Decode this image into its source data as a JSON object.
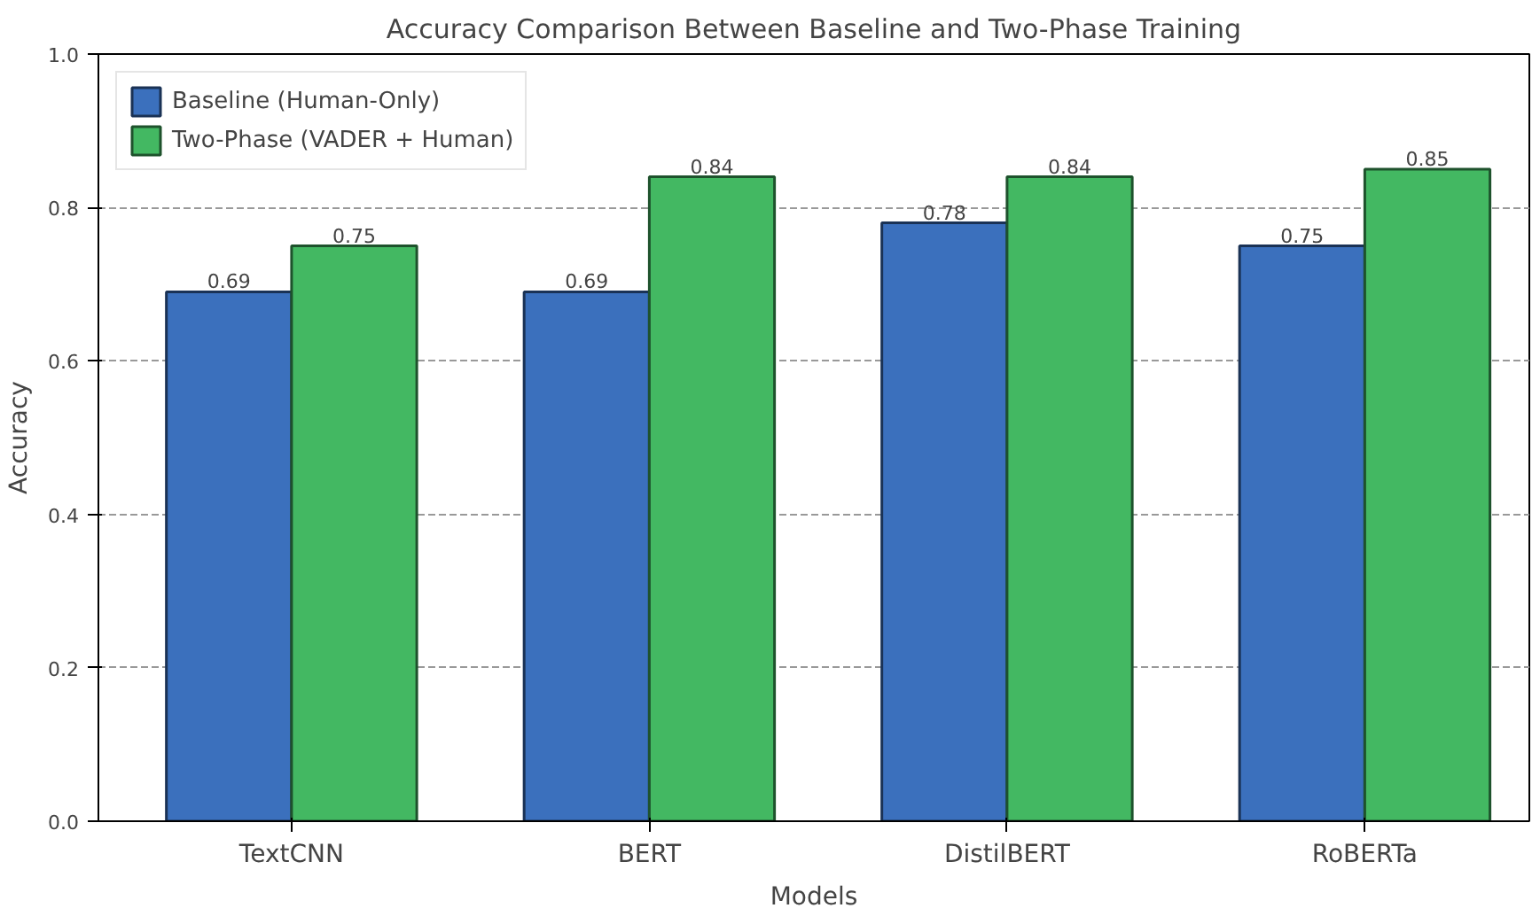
{
  "chart_data": {
    "type": "bar",
    "title": "Accuracy Comparison Between Baseline and Two-Phase Training",
    "xlabel": "Models",
    "ylabel": "Accuracy",
    "categories": [
      "TextCNN",
      "BERT",
      "DistilBERT",
      "RoBERTa"
    ],
    "series": [
      {
        "name": "Baseline (Human-Only)",
        "color": "#3b70bd",
        "values": [
          0.69,
          0.69,
          0.78,
          0.75
        ]
      },
      {
        "name": "Two-Phase (VADER + Human)",
        "color": "#43b862",
        "values": [
          0.75,
          0.84,
          0.84,
          0.85
        ]
      }
    ],
    "ylim": [
      0,
      1.0
    ],
    "yticks": [
      {
        "value": 0,
        "label": "0.0"
      },
      {
        "value": 0.2,
        "label": "0.2"
      },
      {
        "value": 0.4,
        "label": "0.4"
      },
      {
        "value": 0.6,
        "label": "0.6"
      },
      {
        "value": 0.8,
        "label": "0.8"
      },
      {
        "value": 1,
        "label": "1.0"
      }
    ],
    "grid": "y",
    "legend": "top left",
    "data_labels": true
  }
}
